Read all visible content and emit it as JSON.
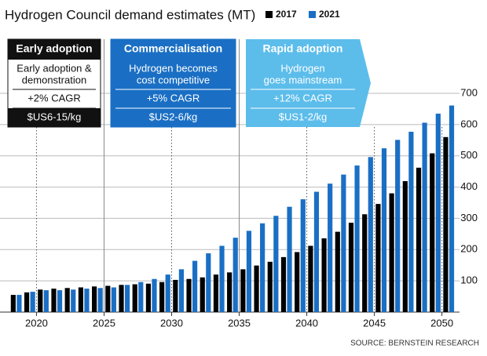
{
  "chart_data": {
    "type": "bar",
    "title": "Hydrogen Council demand estimates (MT)",
    "x": [
      2018,
      2019,
      2020,
      2021,
      2022,
      2023,
      2024,
      2025,
      2026,
      2027,
      2028,
      2029,
      2030,
      2031,
      2032,
      2033,
      2034,
      2035,
      2036,
      2037,
      2038,
      2039,
      2040,
      2041,
      2042,
      2043,
      2044,
      2045,
      2046,
      2047,
      2048,
      2049,
      2050
    ],
    "series": [
      {
        "name": "2017",
        "color": "#000000",
        "values": [
          55,
          63,
          72,
          75,
          77,
          79,
          82,
          84,
          87,
          89,
          91,
          96,
          103,
          106,
          111,
          120,
          127,
          137,
          149,
          161,
          176,
          192,
          212,
          236,
          257,
          286,
          313,
          346,
          380,
          419,
          462,
          508,
          560
        ]
      },
      {
        "name": "2021",
        "color": "#1a6fc4",
        "values": [
          55,
          65,
          70,
          70,
          72,
          75,
          77,
          79,
          87,
          96,
          106,
          120,
          137,
          164,
          188,
          212,
          238,
          260,
          284,
          308,
          337,
          361,
          385,
          411,
          440,
          469,
          496,
          524,
          551,
          577,
          606,
          635,
          661
        ]
      }
    ],
    "xlim": [
      2017.3,
      2051.3
    ],
    "xticks": [
      2020,
      2025,
      2030,
      2035,
      2040,
      2045,
      2050
    ],
    "ylim": [
      0,
      700
    ],
    "yticks": [
      100,
      200,
      300,
      400,
      500,
      600,
      700
    ],
    "grid": true,
    "annotations": [
      {
        "name": "Early adoption",
        "description": [
          "Early adoption &",
          "demonstration"
        ],
        "growth": "+2% CAGR",
        "cost": "$US6-15/kg"
      },
      {
        "name": "Commercialisation",
        "description": [
          "Hydrogen becomes",
          "cost competitive"
        ],
        "growth": "+5% CAGR",
        "cost": "$US2-6/kg"
      },
      {
        "name": "Rapid adoption",
        "description": [
          "Hydrogen",
          "goes mainstream"
        ],
        "growth": "+12% CAGR",
        "cost": "$US1-2/kg"
      }
    ],
    "source": "SOURCE: BERNSTEIN RESEARCH"
  }
}
